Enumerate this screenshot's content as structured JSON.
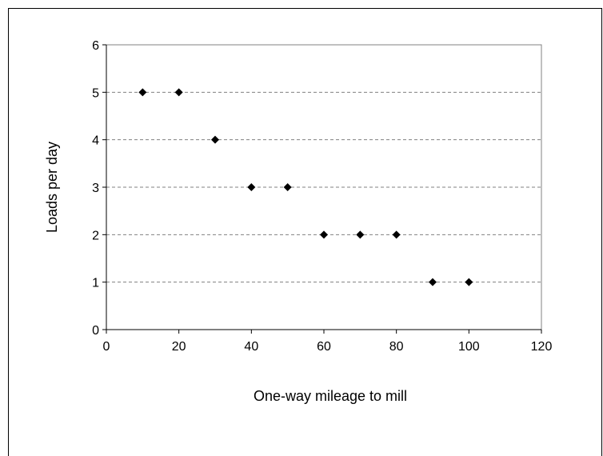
{
  "chart_data": {
    "type": "scatter",
    "xlabel": "One-way mileage to mill",
    "ylabel": "Loads per day",
    "xlim": [
      0,
      120
    ],
    "ylim": [
      0,
      6
    ],
    "xticks": [
      "0",
      "20",
      "40",
      "60",
      "80",
      "100",
      "120"
    ],
    "yticks": [
      "0",
      "1",
      "2",
      "3",
      "4",
      "5",
      "6"
    ],
    "grid": "horizontal dashed",
    "legend": "none",
    "marker": "diamond",
    "marker_color": "#000000",
    "series": [
      {
        "x": [
          10,
          20,
          30,
          40,
          50,
          60,
          70,
          80,
          90,
          100
        ],
        "y": [
          5,
          5,
          4,
          3,
          3,
          2,
          2,
          2,
          1,
          1
        ]
      }
    ]
  }
}
